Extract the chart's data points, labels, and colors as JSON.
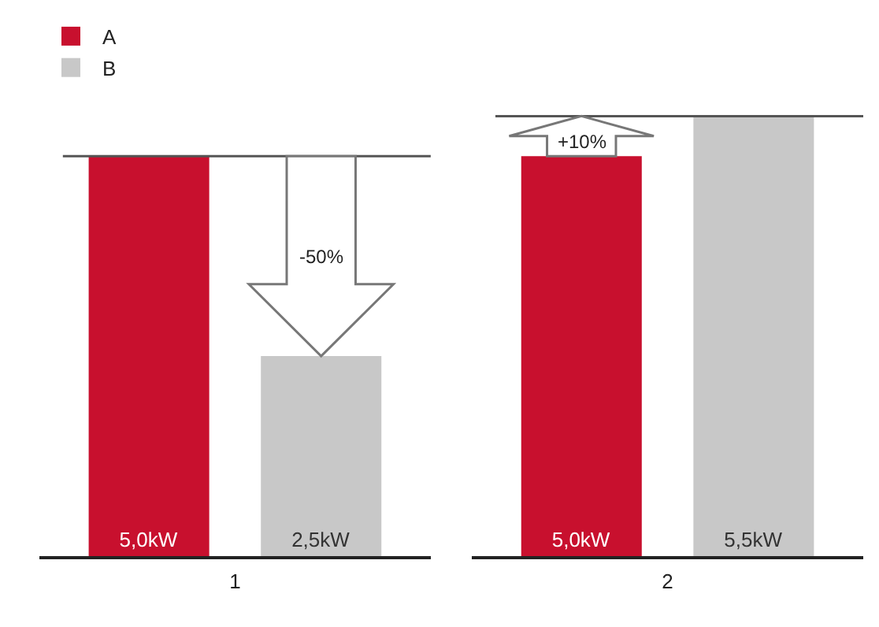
{
  "chart_data": [
    {
      "type": "bar",
      "categories": [
        null
      ],
      "xlabel": "1",
      "legend": "top left",
      "series": [
        {
          "name": "A",
          "color": "#c8102e",
          "values": [
            5.0
          ],
          "value_labels": [
            "5,0kW"
          ]
        },
        {
          "name": "B",
          "color": "#c8c8c8",
          "values": [
            2.5
          ],
          "value_labels": [
            "2,5kW"
          ]
        }
      ],
      "annotations": [
        "-50%"
      ],
      "ref_lines": [
        {
          "axis": "y",
          "value": 5.0,
          "color": "#555555"
        }
      ]
    },
    {
      "type": "bar",
      "categories": [
        null
      ],
      "xlabel": "2",
      "series": [
        {
          "color": "#c8102e",
          "values": [
            5.0
          ],
          "value_labels": [
            "5,0kW"
          ]
        },
        {
          "color": "#c8c8c8",
          "values": [
            5.5
          ],
          "value_labels": [
            "5,5kW"
          ]
        }
      ],
      "annotations": [
        "+10%"
      ],
      "ref_lines": [
        {
          "axis": "y",
          "value": 5.5,
          "color": "#555555"
        }
      ]
    }
  ]
}
